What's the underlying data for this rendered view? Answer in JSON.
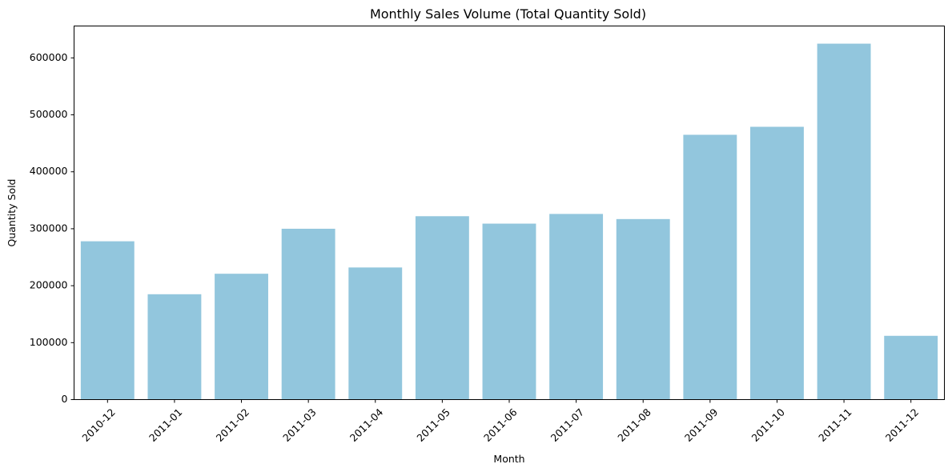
{
  "chart_data": {
    "type": "bar",
    "title": "Monthly Sales Volume (Total Quantity Sold)",
    "xlabel": "Month",
    "ylabel": "Quantity Sold",
    "categories": [
      "2010-12",
      "2011-01",
      "2011-02",
      "2011-03",
      "2011-04",
      "2011-05",
      "2011-06",
      "2011-07",
      "2011-08",
      "2011-09",
      "2011-10",
      "2011-11",
      "2011-12"
    ],
    "values": [
      278000,
      185000,
      221000,
      300000,
      232000,
      322000,
      309000,
      326000,
      317000,
      465000,
      479000,
      625000,
      112000
    ],
    "ylim": [
      0,
      656000
    ],
    "yticks": [
      0,
      100000,
      200000,
      300000,
      400000,
      500000,
      600000
    ],
    "ytick_labels": [
      "0",
      "100000",
      "200000",
      "300000",
      "400000",
      "500000",
      "600000"
    ],
    "bar_color": "#92c6dd",
    "grid": false,
    "legend": "none"
  }
}
